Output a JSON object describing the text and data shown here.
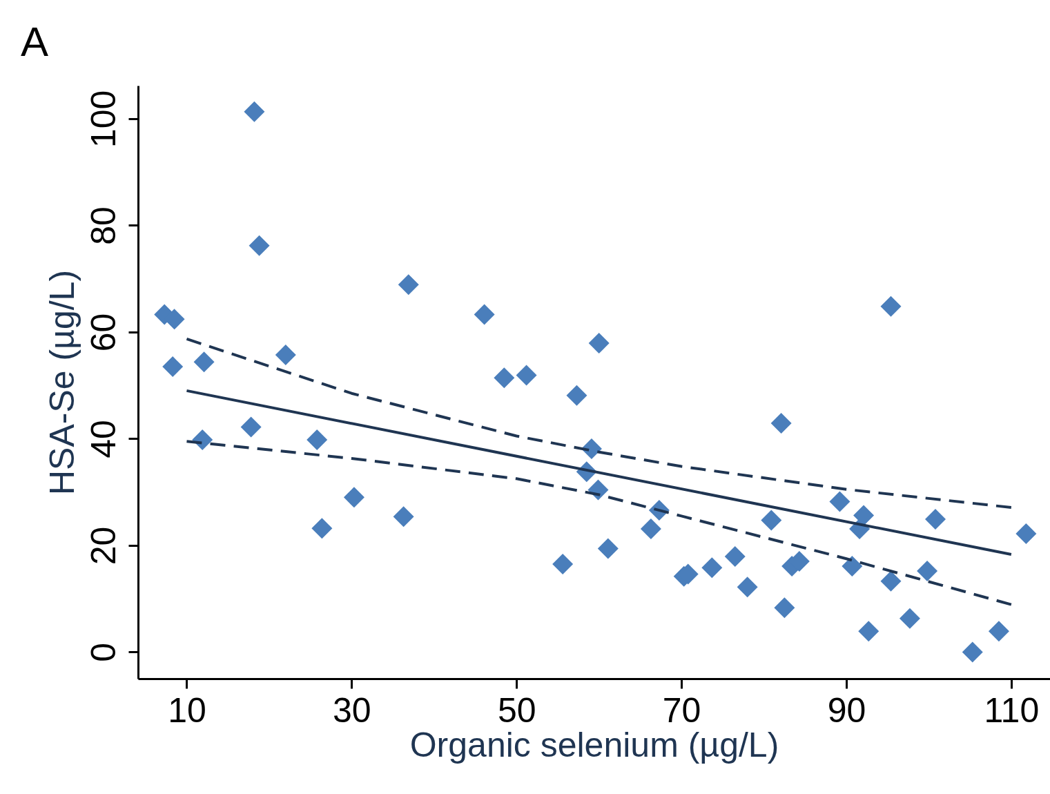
{
  "chart_data": {
    "type": "scatter",
    "title": "A",
    "xlabel": "Organic selenium (µg/L)",
    "ylabel": "HSA-Se (µg/L)",
    "xlim": [
      4.1,
      114.7
    ],
    "ylim": [
      -5,
      106.2
    ],
    "xticks": [
      10,
      30,
      50,
      70,
      90,
      110
    ],
    "yticks": [
      0,
      20,
      40,
      60,
      80,
      100
    ],
    "grid": false,
    "series": [
      {
        "color": "#4a7ebb",
        "marker": "diamond",
        "x": [
          7.3,
          8.5,
          8.3,
          12.1,
          11.9,
          18.2,
          18.8,
          17.8,
          22.0,
          25.8,
          26.4,
          30.3,
          36.3,
          36.9,
          46.1,
          48.5,
          51.2,
          55.6,
          57.3,
          58.5,
          59.1,
          60.0,
          59.9,
          61.1,
          66.3,
          67.3,
          70.3,
          70.8,
          73.7,
          76.5,
          78.0,
          80.9,
          82.1,
          82.5,
          83.4,
          84.3,
          89.2,
          90.7,
          91.6,
          92.1,
          92.7,
          95.4,
          95.4,
          97.7,
          99.8,
          100.8,
          105.3,
          108.5,
          111.8
        ],
        "values": [
          63.3,
          62.4,
          53.5,
          54.4,
          39.8,
          101.3,
          76.2,
          42.2,
          55.7,
          39.8,
          23.2,
          29.0,
          25.4,
          68.9,
          63.3,
          51.4,
          51.9,
          16.5,
          48.1,
          33.8,
          38.1,
          57.9,
          30.4,
          19.4,
          23.1,
          26.6,
          14.2,
          14.6,
          15.8,
          17.9,
          12.2,
          24.7,
          42.9,
          8.3,
          16.1,
          17.0,
          28.2,
          16.1,
          23.1,
          25.6,
          3.9,
          64.8,
          13.3,
          6.3,
          15.2,
          24.9,
          0,
          3.9,
          22.2
        ]
      },
      {
        "type": "line",
        "color": "#1f3552",
        "line_style": "solid",
        "x": [
          10,
          110
        ],
        "values": [
          49.0,
          18.3
        ]
      },
      {
        "type": "line",
        "color": "#1f3552",
        "line_style": "dashed",
        "x": [
          10,
          30,
          50,
          60,
          70,
          90,
          110
        ],
        "values": [
          58.7,
          48.5,
          40.5,
          37.5,
          34.8,
          30.5,
          27.1
        ]
      },
      {
        "type": "line",
        "color": "#1f3552",
        "line_style": "dashed",
        "x": [
          10,
          30,
          50,
          60,
          70,
          90,
          110
        ],
        "values": [
          39.5,
          36.3,
          32.5,
          29.5,
          25.5,
          17.5,
          8.9
        ]
      }
    ]
  }
}
